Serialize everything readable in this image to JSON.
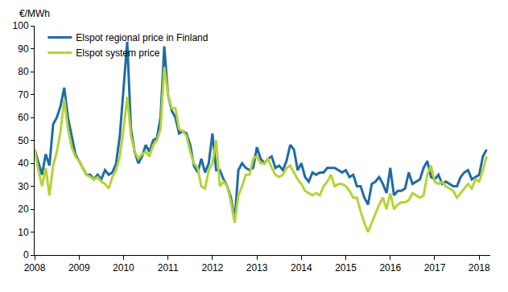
{
  "chart_data": {
    "type": "line",
    "y_label": "€/MWh",
    "categories": [
      "2008",
      null,
      null,
      null,
      null,
      null,
      null,
      null,
      null,
      null,
      null,
      null,
      "2009",
      null,
      null,
      null,
      null,
      null,
      null,
      null,
      null,
      null,
      null,
      null,
      "2010",
      null,
      null,
      null,
      null,
      null,
      null,
      null,
      null,
      null,
      null,
      null,
      "2011",
      null,
      null,
      null,
      null,
      null,
      null,
      null,
      null,
      null,
      null,
      null,
      "2012",
      null,
      null,
      null,
      null,
      null,
      null,
      null,
      null,
      null,
      null,
      null,
      "2013",
      null,
      null,
      null,
      null,
      null,
      null,
      null,
      null,
      null,
      null,
      null,
      "2014",
      null,
      null,
      null,
      null,
      null,
      null,
      null,
      null,
      null,
      null,
      null,
      "2015",
      null,
      null,
      null,
      null,
      null,
      null,
      null,
      null,
      null,
      null,
      null,
      "2016",
      null,
      null,
      null,
      null,
      null,
      null,
      null,
      null,
      null,
      null,
      null,
      "2017",
      null,
      null,
      null,
      null,
      null,
      null,
      null,
      null,
      null,
      null,
      null,
      "2018",
      null,
      null
    ],
    "series": [
      {
        "name": "Elspot regional price in Finland",
        "color": "#1f6ba5",
        "values": [
          46,
          40,
          35,
          44,
          39,
          57,
          60,
          65,
          73,
          60,
          52,
          44,
          41,
          38,
          35,
          35,
          33,
          35,
          33,
          37,
          35,
          36,
          40,
          52,
          73,
          93,
          55,
          45,
          40,
          43,
          48,
          45,
          50,
          51,
          60,
          91,
          70,
          63,
          60,
          53,
          54,
          53,
          48,
          39,
          36,
          42,
          36,
          40,
          53,
          37,
          37,
          33,
          30,
          25,
          15,
          37,
          40,
          38,
          37,
          38,
          47,
          42,
          40,
          42,
          43,
          38,
          39,
          37,
          41,
          48,
          46,
          37,
          40,
          34,
          32,
          36,
          35,
          36,
          36,
          38,
          38,
          38,
          37,
          36,
          37,
          34,
          35,
          30,
          30,
          25,
          22,
          31,
          32,
          34,
          31,
          27,
          38,
          26,
          28,
          28,
          29,
          36,
          31,
          32,
          33,
          38,
          41,
          34,
          33,
          35,
          31,
          32,
          31,
          30,
          30,
          34,
          36,
          37,
          33,
          34,
          35,
          43,
          46
        ]
      },
      {
        "name": "Elspot system price",
        "color": "#b5d334",
        "values": [
          46,
          37,
          30,
          38,
          26,
          39,
          45,
          54,
          68,
          55,
          47,
          43,
          41,
          38,
          35,
          34,
          33,
          34,
          32,
          31,
          29,
          34,
          37,
          43,
          55,
          69,
          52,
          45,
          42,
          44,
          45,
          43,
          48,
          50,
          55,
          82,
          70,
          64,
          64,
          55,
          54,
          52,
          45,
          40,
          38,
          30,
          29,
          37,
          40,
          50,
          30,
          32,
          30,
          23,
          14,
          26,
          30,
          35,
          35,
          42,
          43,
          40,
          40,
          42,
          38,
          35,
          34,
          35,
          38,
          39,
          36,
          33,
          31,
          28,
          27,
          26,
          27,
          26,
          30,
          32,
          35,
          30,
          31,
          31,
          30,
          28,
          25,
          25,
          19,
          14,
          10,
          14,
          18,
          22,
          25,
          20,
          27,
          20,
          22,
          23,
          23,
          24,
          27,
          26,
          25,
          26,
          35,
          39,
          32,
          31,
          32,
          30,
          29,
          28,
          25,
          27,
          29,
          31,
          29,
          33,
          32,
          37,
          43
        ]
      }
    ],
    "ylim": [
      0,
      100
    ],
    "yticks": [
      0,
      10,
      20,
      30,
      40,
      50,
      60,
      70,
      80,
      90,
      100
    ],
    "grid": false,
    "legend": "upper left"
  }
}
